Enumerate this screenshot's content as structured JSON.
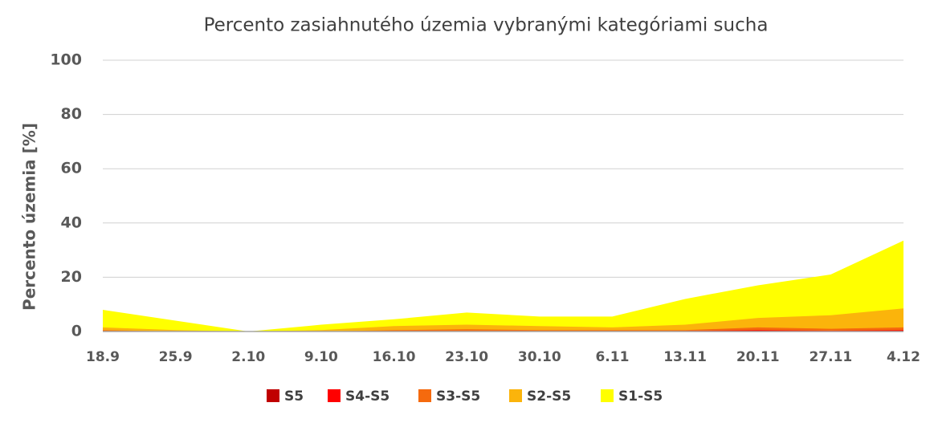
{
  "chart_data": {
    "type": "area",
    "title": "Percento zasiahnutého územia vybranými kategóriami sucha",
    "y_label": "Percento územia  [%]",
    "categories": [
      "18.9",
      "25.9",
      "2.10",
      "9.10",
      "16.10",
      "23.10",
      "30.10",
      "6.11",
      "13.11",
      "20.11",
      "27.11",
      "4.12"
    ],
    "series": [
      {
        "name": "S5",
        "color": "#c00000",
        "values": [
          0,
          0,
          0,
          0,
          0,
          0,
          0,
          0,
          0.1,
          0.2,
          0.1,
          0.2
        ]
      },
      {
        "name": "S4-S5",
        "color": "#ff0000",
        "values": [
          0,
          0,
          0,
          0,
          0,
          0,
          0,
          0,
          0.2,
          0.5,
          0.3,
          0.5
        ]
      },
      {
        "name": "S3-S5",
        "color": "#f56a0e",
        "values": [
          0.5,
          0,
          0,
          0,
          0.5,
          0.8,
          0.5,
          0.5,
          0.5,
          1.5,
          1,
          1.5
        ]
      },
      {
        "name": "S2-S5",
        "color": "#fbb40b",
        "values": [
          1.5,
          0.5,
          0,
          0.5,
          2,
          2.5,
          2,
          1.5,
          2.5,
          5,
          6,
          8.5
        ]
      },
      {
        "name": "S1-S5",
        "color": "#ffff00",
        "values": [
          8,
          4,
          0,
          2.5,
          4.5,
          7,
          5.5,
          5.5,
          12,
          17,
          21,
          33.5
        ]
      }
    ],
    "ylim": [
      0,
      100
    ],
    "yticks": [
      0,
      20,
      40,
      60,
      80,
      100
    ],
    "grid": true
  }
}
